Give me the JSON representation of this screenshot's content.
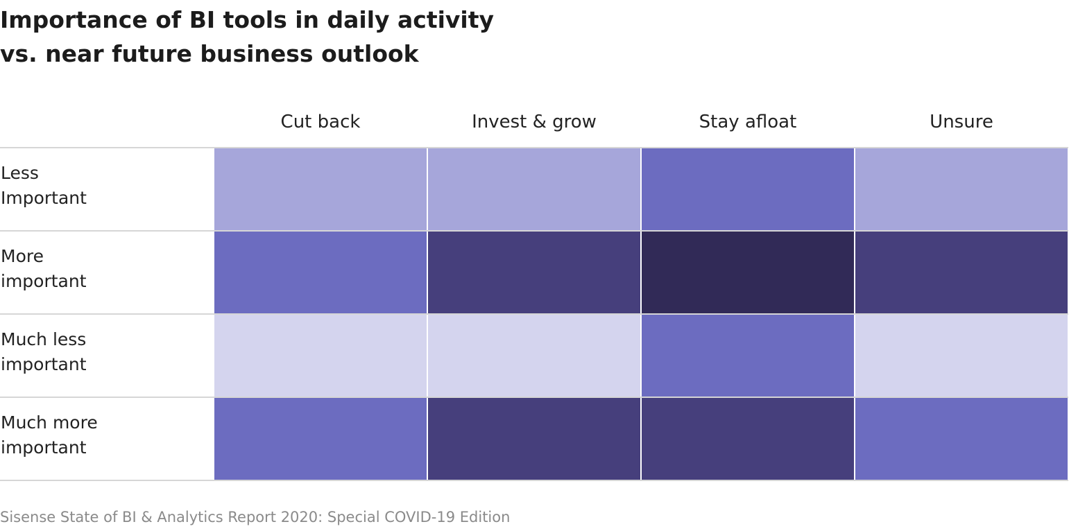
{
  "title": {
    "line1": "Importance of BI tools in daily activity",
    "line2": "vs. near future business outlook"
  },
  "source": "Sisense State of BI & Analytics Report 2020: Special COVID-19 Edition",
  "colors": {
    "level_1": "#d4d4ee",
    "level_2": "#a6a6da",
    "level_3": "#6c6cc0",
    "level_4": "#463f7c",
    "level_5": "#312a57",
    "grid_line": "#d6d6d6"
  },
  "chart_data": {
    "type": "heatmap",
    "columns": [
      "Cut back",
      "Invest & grow",
      "Stay afloat",
      "Unsure"
    ],
    "rows": [
      [
        "Less",
        "Important"
      ],
      [
        "More",
        "important"
      ],
      [
        "Much less",
        "important"
      ],
      [
        "Much more",
        "important"
      ]
    ],
    "intensity_levels": [
      [
        2,
        2,
        3,
        2
      ],
      [
        3,
        4,
        5,
        4
      ],
      [
        1,
        1,
        3,
        1
      ],
      [
        3,
        4,
        4,
        3
      ]
    ],
    "legend": "none",
    "grid": false
  }
}
